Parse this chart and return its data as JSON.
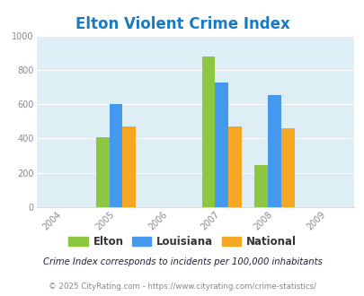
{
  "title": "Elton Violent Crime Index",
  "title_color": "#1a7abf",
  "title_fontsize": 12,
  "years": [
    2004,
    2005,
    2006,
    2007,
    2008,
    2009
  ],
  "data_years": [
    2005,
    2007,
    2008
  ],
  "elton": [
    405,
    878,
    248
  ],
  "louisiana": [
    600,
    728,
    652
  ],
  "national": [
    468,
    468,
    458
  ],
  "bar_colors": {
    "elton": "#8dc63f",
    "louisiana": "#4499ee",
    "national": "#f5a623"
  },
  "ylim": [
    0,
    1000
  ],
  "yticks": [
    0,
    200,
    400,
    600,
    800,
    1000
  ],
  "years_all": [
    2004,
    2005,
    2006,
    2007,
    2008,
    2009
  ],
  "bar_width": 0.25,
  "bg_color": "#ddeef4",
  "grid_color": "#ffffff",
  "legend_labels": [
    "Elton",
    "Louisiana",
    "National"
  ],
  "legend_label_colors": [
    "#333333",
    "#333333",
    "#333333"
  ],
  "footnote1": "Crime Index corresponds to incidents per 100,000 inhabitants",
  "footnote2": "© 2025 CityRating.com - https://www.cityrating.com/crime-statistics/",
  "footnote1_color": "#222244",
  "footnote2_color": "#888888"
}
